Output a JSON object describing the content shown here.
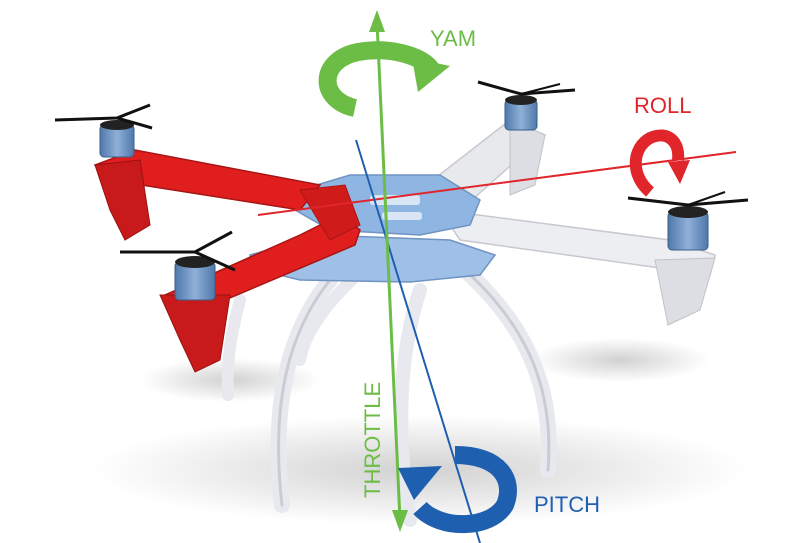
{
  "labels": {
    "yaw": "YAM",
    "roll": "ROLL",
    "pitch": "PITCH",
    "throttle": "THROTTLE"
  },
  "colors": {
    "yaw": "#6cbd45",
    "roll": "#e0262b",
    "pitch": "#1f5fb0",
    "throttle": "#6cbd45",
    "front_arms": "#e01e1e",
    "rear_arms": "#e8e9ec",
    "center_plate": "#8fb6e3",
    "motor": "#6c93c3"
  },
  "icons": [
    "yaw-rotation-arrow-icon",
    "roll-rotation-arrow-icon",
    "pitch-rotation-arrow-icon"
  ]
}
